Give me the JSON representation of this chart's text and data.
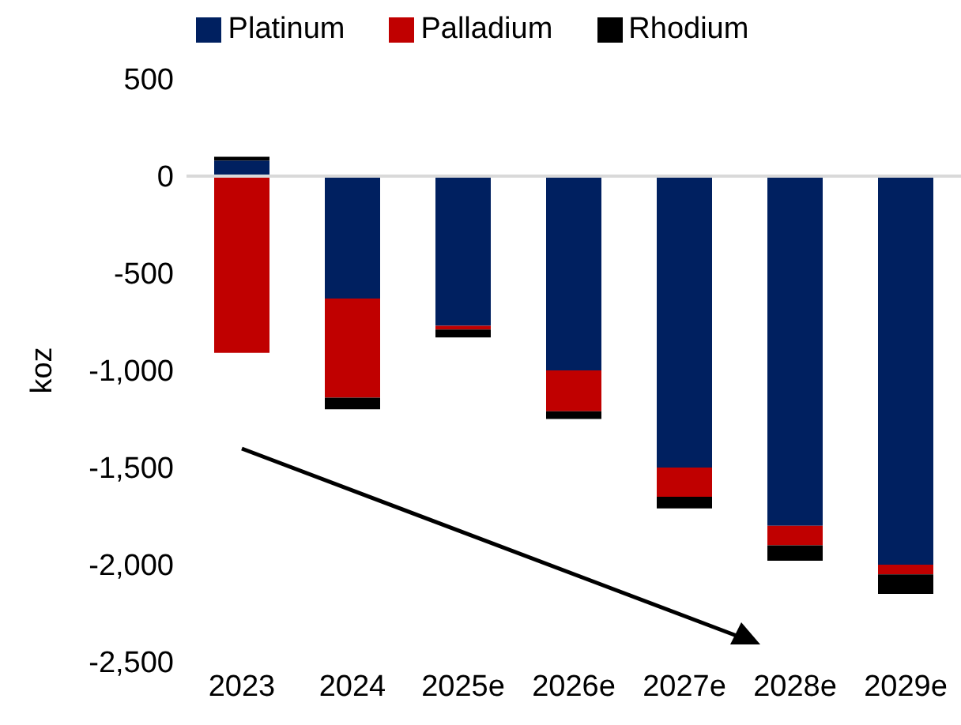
{
  "chart_data": {
    "type": "bar",
    "stacked": true,
    "ylabel": "koz",
    "categories": [
      "2023",
      "2024",
      "2025e",
      "2026e",
      "2027e",
      "2028e",
      "2029e"
    ],
    "series": [
      {
        "name": "Platinum",
        "color": "#002060",
        "values": [
          80,
          -630,
          -770,
          -1000,
          -1500,
          -1800,
          -2000
        ]
      },
      {
        "name": "Palladium",
        "color": "#c00000",
        "values": [
          -910,
          -510,
          -20,
          -210,
          -150,
          -100,
          -50
        ]
      },
      {
        "name": "Rhodium",
        "color": "#000000",
        "values": [
          20,
          -60,
          -40,
          -40,
          -60,
          -80,
          -100
        ]
      }
    ],
    "ylim": [
      -2500,
      500
    ],
    "yticks": [
      500,
      0,
      -500,
      {
        "value": -1000,
        "label": "-1,000"
      },
      {
        "value": -1500,
        "label": "-1,500"
      },
      {
        "value": -2000,
        "label": "-2,000"
      },
      {
        "value": -2500,
        "label": "-2,500"
      }
    ],
    "ref_lines": [
      {
        "axis": "y",
        "value": 0,
        "color": "#d9d9d9"
      }
    ],
    "grid": false,
    "legend": "top"
  }
}
